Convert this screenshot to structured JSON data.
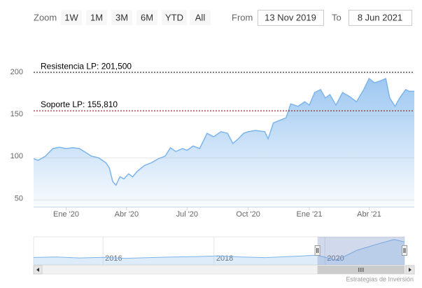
{
  "chart_data": {
    "type": "area",
    "range_selector": {
      "zoom_label": "Zoom",
      "buttons": [
        "1W",
        "1M",
        "3M",
        "6M",
        "YTD",
        "All"
      ],
      "from_label": "From",
      "from": "13 Nov 2019",
      "to_label": "To",
      "to": "8 Jun 2021"
    },
    "color": "#7cb5ec",
    "x": [
      "2019-11-13",
      "2019-11-20",
      "2019-12-01",
      "2019-12-12",
      "2019-12-22",
      "2020-01-01",
      "2020-01-11",
      "2020-01-21",
      "2020-01-29",
      "2020-02-08",
      "2020-02-19",
      "2020-03-01",
      "2020-03-06",
      "2020-03-11",
      "2020-03-16",
      "2020-03-22",
      "2020-03-28",
      "2020-04-04",
      "2020-04-10",
      "2020-04-17",
      "2020-04-28",
      "2020-05-08",
      "2020-05-19",
      "2020-05-29",
      "2020-06-06",
      "2020-06-14",
      "2020-06-24",
      "2020-07-01",
      "2020-07-10",
      "2020-07-20",
      "2020-07-31",
      "2020-08-10",
      "2020-08-21",
      "2020-08-31",
      "2020-09-08",
      "2020-09-16",
      "2020-09-24",
      "2020-10-01",
      "2020-10-12",
      "2020-10-26",
      "2020-10-31",
      "2020-11-08",
      "2020-11-16",
      "2020-11-27",
      "2020-12-04",
      "2020-12-15",
      "2020-12-25",
      "2021-01-01",
      "2021-01-09",
      "2021-01-18",
      "2021-01-25",
      "2021-02-01",
      "2021-02-10",
      "2021-02-20",
      "2021-03-03",
      "2021-03-13",
      "2021-03-24",
      "2021-04-01",
      "2021-04-09",
      "2021-04-19",
      "2021-04-26",
      "2021-05-02",
      "2021-05-10",
      "2021-05-17",
      "2021-05-26",
      "2021-05-31",
      "2021-06-08"
    ],
    "values": [
      99,
      97,
      102,
      111,
      112.5,
      111,
      112,
      111,
      107,
      102,
      100,
      94,
      88,
      72,
      67.5,
      77.5,
      75,
      81,
      77.5,
      84,
      91,
      94,
      99,
      102,
      112,
      107.5,
      111,
      109,
      114,
      111,
      129,
      125,
      131,
      129,
      117,
      122.5,
      129,
      131,
      132.5,
      131,
      122.5,
      141.5,
      144,
      147.5,
      164,
      161,
      166.5,
      162.5,
      177.5,
      181,
      171,
      175,
      162.5,
      177.5,
      172.5,
      166.5,
      181,
      194,
      189,
      191.5,
      194,
      171,
      161,
      171,
      181,
      179,
      179
    ],
    "xlim": [
      "2019-11-13",
      "2021-06-08"
    ],
    "xticks": [
      {
        "value": "2020-01-01",
        "label": "Ene '20"
      },
      {
        "value": "2020-04-01",
        "label": "Abr '20"
      },
      {
        "value": "2020-07-01",
        "label": "Jul '20"
      },
      {
        "value": "2020-10-01",
        "label": "Oct '20"
      },
      {
        "value": "2021-01-01",
        "label": "Ene '21"
      },
      {
        "value": "2021-04-01",
        "label": "Abr '21"
      }
    ],
    "ylim": [
      42,
      229
    ],
    "yticks": [
      50,
      100,
      150,
      200
    ],
    "grid": true,
    "plot_lines": [
      {
        "value": 201.5,
        "label": "Resistencia LP: 201,500",
        "color": "#000000"
      },
      {
        "value": 155.81,
        "label": "Soporte LP: 155,810",
        "color": "#8b0000"
      }
    ],
    "navigator": {
      "x": [
        "2014-10-01",
        "2015-03-01",
        "2015-08-01",
        "2016-01-01",
        "2016-06-01",
        "2016-11-01",
        "2017-04-01",
        "2017-09-01",
        "2018-02-01",
        "2018-07-01",
        "2018-12-01",
        "2019-05-01",
        "2019-11-13",
        "2020-03-16",
        "2020-07-31",
        "2020-12-04",
        "2021-04-01",
        "2021-06-08"
      ],
      "values": [
        85,
        88,
        82,
        86,
        80,
        84,
        88,
        90,
        95,
        88,
        84,
        90,
        99,
        68,
        129,
        164,
        194,
        179
      ],
      "xlim": [
        "2014-10-01",
        "2021-06-08"
      ],
      "xticks": [
        {
          "value": "2016-01-01",
          "label": "2016"
        },
        {
          "value": "2018-01-01",
          "label": "2018"
        },
        {
          "value": "2020-01-01",
          "label": "2020"
        }
      ],
      "ylim": [
        40,
        210
      ]
    },
    "credits": "Estrategias de Inversión"
  }
}
